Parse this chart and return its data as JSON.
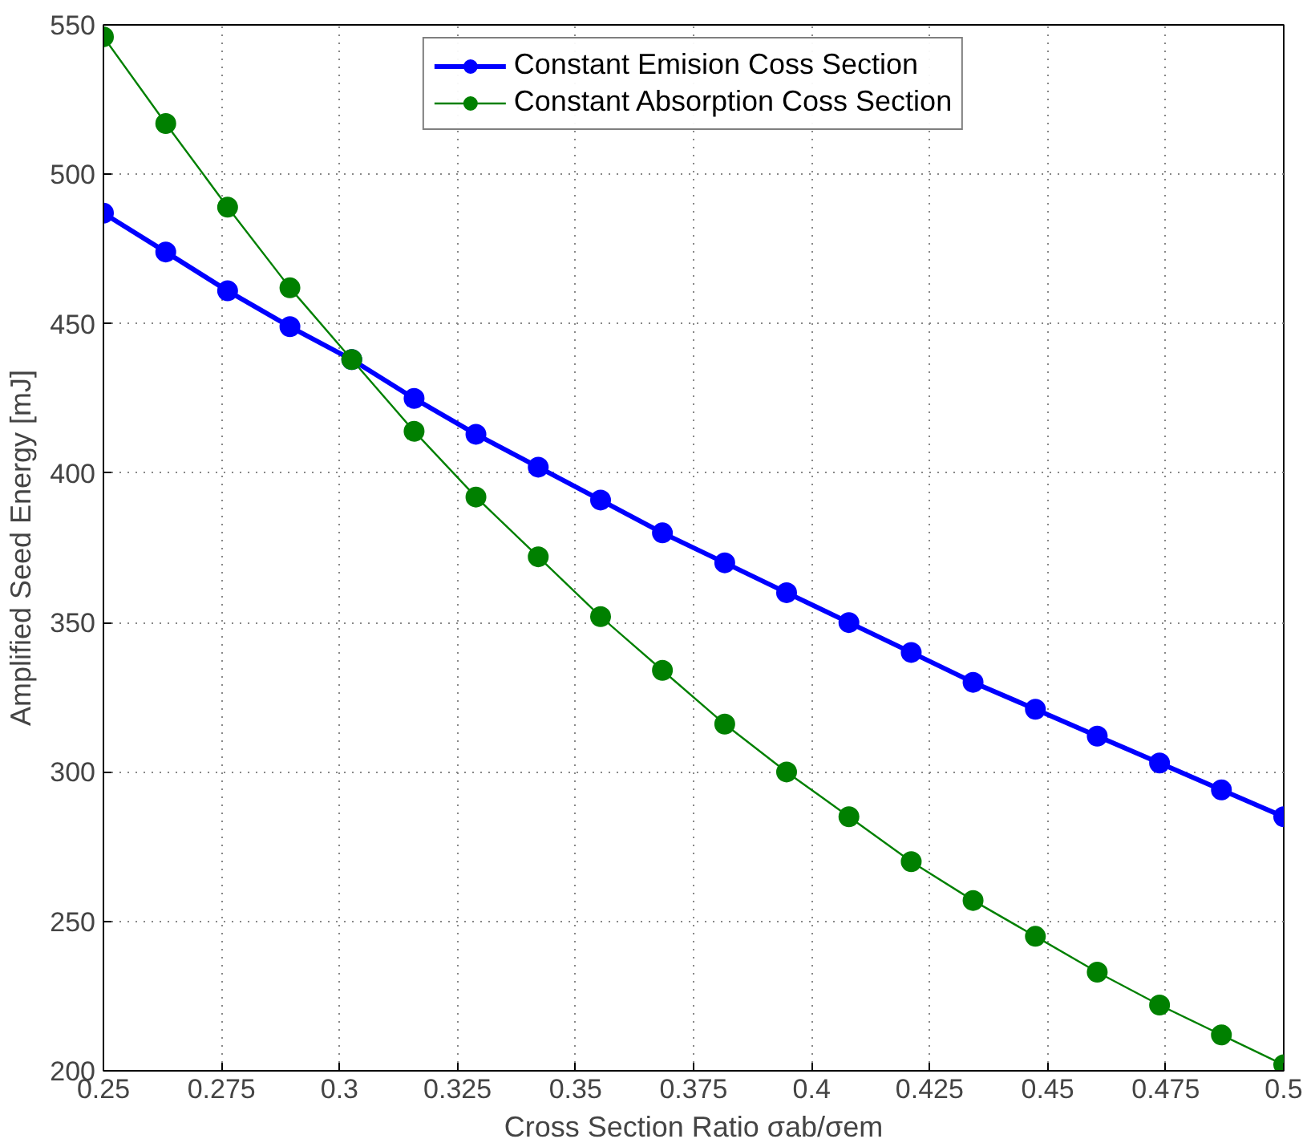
{
  "chart_data": {
    "type": "line",
    "xlabel": "Cross Section Ratio σab/σem",
    "ylabel": "Amplified Seed Energy [mJ]",
    "x": [
      0.25,
      0.2632,
      0.2763,
      0.2895,
      0.3026,
      0.3158,
      0.3289,
      0.3421,
      0.3553,
      0.3684,
      0.3816,
      0.3947,
      0.4079,
      0.4211,
      0.4342,
      0.4474,
      0.4605,
      0.4737,
      0.4868,
      0.5
    ],
    "series": [
      {
        "name": "Constant Emision Coss Section",
        "color": "#0000ff",
        "values": [
          487,
          474,
          461,
          449,
          438,
          425,
          413,
          402,
          391,
          380,
          370,
          360,
          350,
          340,
          330,
          321,
          312,
          303,
          294,
          285
        ]
      },
      {
        "name": "Constant Absorption Coss Section",
        "color": "#008000",
        "values": [
          546,
          517,
          489,
          462,
          438,
          414,
          392,
          372,
          352,
          334,
          316,
          300,
          285,
          270,
          257,
          245,
          233,
          222,
          212,
          202
        ]
      }
    ],
    "xlim": [
      0.25,
      0.5
    ],
    "xticks": [
      0.25,
      0.275,
      0.3,
      0.325,
      0.35,
      0.375,
      0.4,
      0.425,
      0.45,
      0.475,
      0.5
    ],
    "ylim": [
      200,
      550
    ],
    "yticks": [
      200,
      250,
      300,
      350,
      400,
      450,
      500,
      550
    ],
    "grid": true,
    "legend": "top",
    "marker": "circle",
    "line_style": "solid"
  }
}
